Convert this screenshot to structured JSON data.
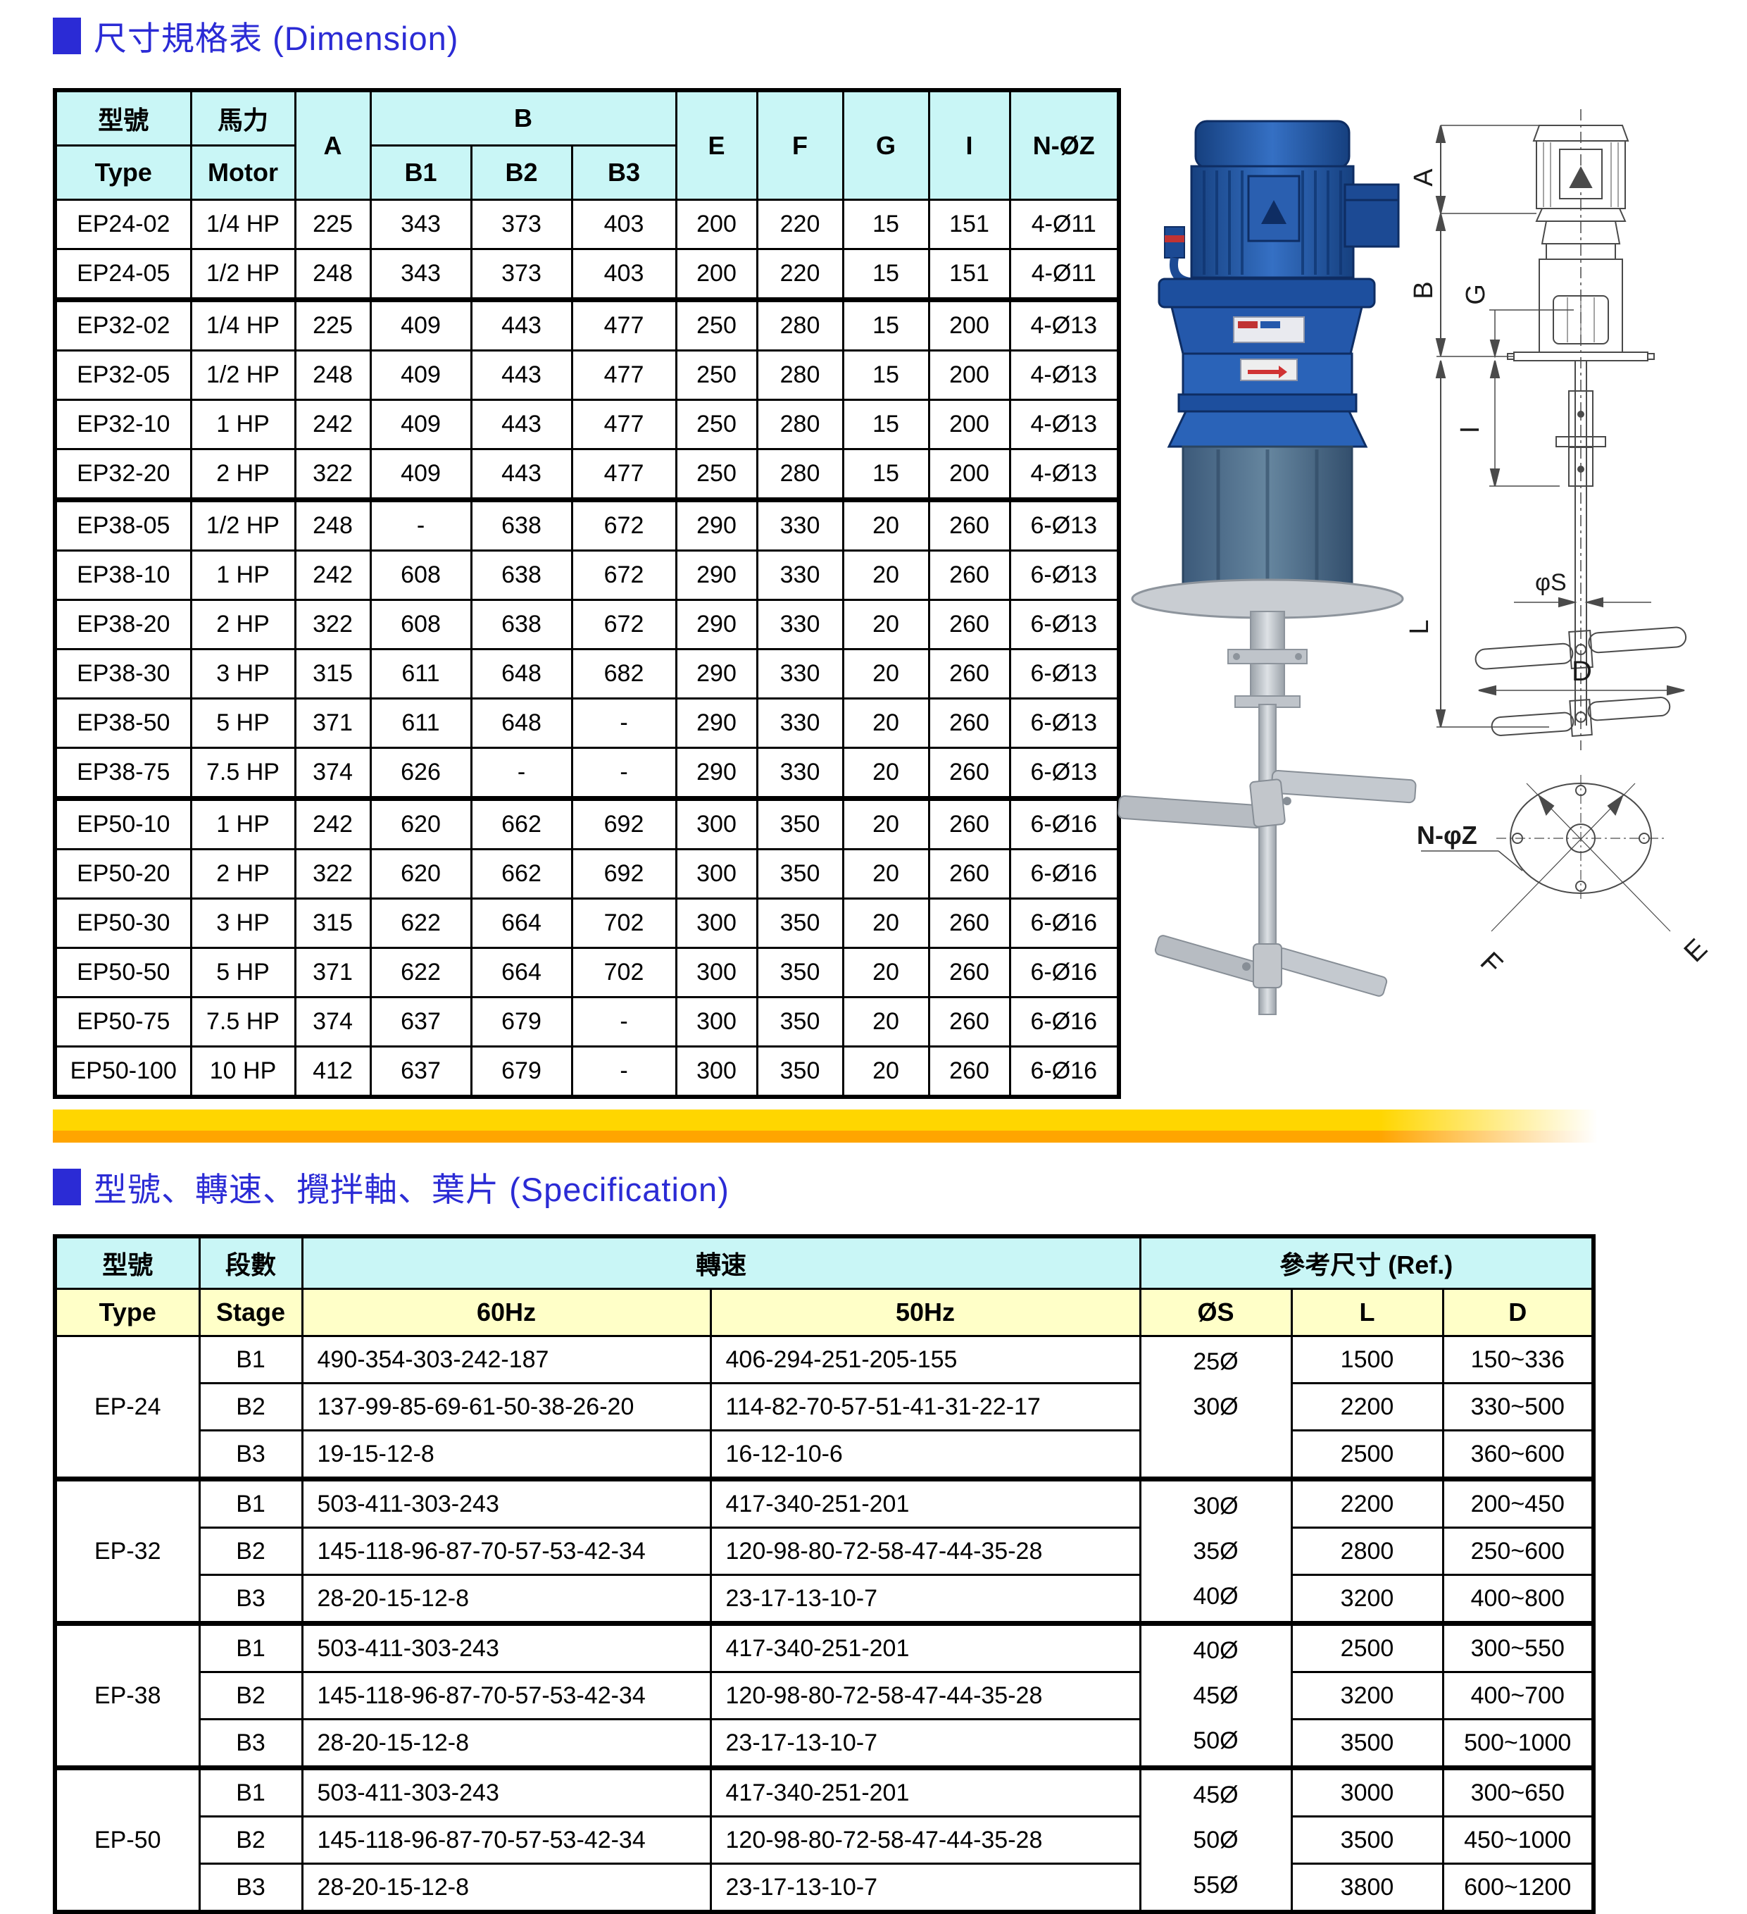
{
  "dimension_section": {
    "title_zh": "尺寸規格表",
    "title_en": "(Dimension)",
    "table": {
      "headers": {
        "type_zh": "型號",
        "type_en": "Type",
        "motor_zh": "馬力",
        "motor_en": "Motor",
        "a": "A",
        "b": "B",
        "b1": "B1",
        "b2": "B2",
        "b3": "B3",
        "e": "E",
        "f": "F",
        "g": "G",
        "i": "I",
        "nz": "N-ØZ"
      },
      "rows": [
        [
          "EP24-02",
          "1/4 HP",
          "225",
          "343",
          "373",
          "403",
          "200",
          "220",
          "15",
          "151",
          "4-Ø11"
        ],
        [
          "EP24-05",
          "1/2 HP",
          "248",
          "343",
          "373",
          "403",
          "200",
          "220",
          "15",
          "151",
          "4-Ø11"
        ],
        [
          "EP32-02",
          "1/4 HP",
          "225",
          "409",
          "443",
          "477",
          "250",
          "280",
          "15",
          "200",
          "4-Ø13"
        ],
        [
          "EP32-05",
          "1/2 HP",
          "248",
          "409",
          "443",
          "477",
          "250",
          "280",
          "15",
          "200",
          "4-Ø13"
        ],
        [
          "EP32-10",
          "1 HP",
          "242",
          "409",
          "443",
          "477",
          "250",
          "280",
          "15",
          "200",
          "4-Ø13"
        ],
        [
          "EP32-20",
          "2 HP",
          "322",
          "409",
          "443",
          "477",
          "250",
          "280",
          "15",
          "200",
          "4-Ø13"
        ],
        [
          "EP38-05",
          "1/2 HP",
          "248",
          "-",
          "638",
          "672",
          "290",
          "330",
          "20",
          "260",
          "6-Ø13"
        ],
        [
          "EP38-10",
          "1 HP",
          "242",
          "608",
          "638",
          "672",
          "290",
          "330",
          "20",
          "260",
          "6-Ø13"
        ],
        [
          "EP38-20",
          "2 HP",
          "322",
          "608",
          "638",
          "672",
          "290",
          "330",
          "20",
          "260",
          "6-Ø13"
        ],
        [
          "EP38-30",
          "3 HP",
          "315",
          "611",
          "648",
          "682",
          "290",
          "330",
          "20",
          "260",
          "6-Ø13"
        ],
        [
          "EP38-50",
          "5 HP",
          "371",
          "611",
          "648",
          "-",
          "290",
          "330",
          "20",
          "260",
          "6-Ø13"
        ],
        [
          "EP38-75",
          "7.5 HP",
          "374",
          "626",
          "-",
          "-",
          "290",
          "330",
          "20",
          "260",
          "6-Ø13"
        ],
        [
          "EP50-10",
          "1 HP",
          "242",
          "620",
          "662",
          "692",
          "300",
          "350",
          "20",
          "260",
          "6-Ø16"
        ],
        [
          "EP50-20",
          "2 HP",
          "322",
          "620",
          "662",
          "692",
          "300",
          "350",
          "20",
          "260",
          "6-Ø16"
        ],
        [
          "EP50-30",
          "3 HP",
          "315",
          "622",
          "664",
          "702",
          "300",
          "350",
          "20",
          "260",
          "6-Ø16"
        ],
        [
          "EP50-50",
          "5 HP",
          "371",
          "622",
          "664",
          "702",
          "300",
          "350",
          "20",
          "260",
          "6-Ø16"
        ],
        [
          "EP50-75",
          "7.5 HP",
          "374",
          "637",
          "679",
          "-",
          "300",
          "350",
          "20",
          "260",
          "6-Ø16"
        ],
        [
          "EP50-100",
          "10 HP",
          "412",
          "637",
          "679",
          "-",
          "300",
          "350",
          "20",
          "260",
          "6-Ø16"
        ]
      ]
    }
  },
  "spec_section": {
    "title_zh": "型號、轉速、攪拌軸、葉片",
    "title_en": "(Specification)",
    "table": {
      "headers": {
        "type_zh": "型號",
        "type_en": "Type",
        "stage_zh": "段數",
        "stage_en": "Stage",
        "speed_zh": "轉速",
        "ref_zh": "參考尺寸 (Ref.)",
        "hz60": "60Hz",
        "hz50": "50Hz",
        "os": "ØS",
        "l": "L",
        "d": "D"
      },
      "groups": [
        {
          "type": "EP-24",
          "os": [
            "25Ø",
            "30Ø",
            ""
          ],
          "rows": [
            [
              "B1",
              "490-354-303-242-187",
              "406-294-251-205-155",
              "1500",
              "150~336"
            ],
            [
              "B2",
              "137-99-85-69-61-50-38-26-20",
              "114-82-70-57-51-41-31-22-17",
              "2200",
              "330~500"
            ],
            [
              "B3",
              "19-15-12-8",
              "16-12-10-6",
              "2500",
              "360~600"
            ]
          ]
        },
        {
          "type": "EP-32",
          "os": [
            "30Ø",
            "35Ø",
            "40Ø"
          ],
          "rows": [
            [
              "B1",
              "503-411-303-243",
              "417-340-251-201",
              "2200",
              "200~450"
            ],
            [
              "B2",
              "145-118-96-87-70-57-53-42-34",
              "120-98-80-72-58-47-44-35-28",
              "2800",
              "250~600"
            ],
            [
              "B3",
              "28-20-15-12-8",
              "23-17-13-10-7",
              "3200",
              "400~800"
            ]
          ]
        },
        {
          "type": "EP-38",
          "os": [
            "40Ø",
            "45Ø",
            "50Ø"
          ],
          "rows": [
            [
              "B1",
              "503-411-303-243",
              "417-340-251-201",
              "2500",
              "300~550"
            ],
            [
              "B2",
              "145-118-96-87-70-57-53-42-34",
              "120-98-80-72-58-47-44-35-28",
              "3200",
              "400~700"
            ],
            [
              "B3",
              "28-20-15-12-8",
              "23-17-13-10-7",
              "3500",
              "500~1000"
            ]
          ]
        },
        {
          "type": "EP-50",
          "os": [
            "45Ø",
            "50Ø",
            "55Ø"
          ],
          "rows": [
            [
              "B1",
              "503-411-303-243",
              "417-340-251-201",
              "3000",
              "300~650"
            ],
            [
              "B2",
              "145-118-96-87-70-57-53-42-34",
              "120-98-80-72-58-47-44-35-28",
              "3500",
              "450~1000"
            ],
            [
              "B3",
              "28-20-15-12-8",
              "23-17-13-10-7",
              "3800",
              "600~1200"
            ]
          ]
        }
      ]
    }
  },
  "diagram": {
    "labels": {
      "a": "A",
      "b": "B",
      "g": "G",
      "i": "I",
      "l": "L",
      "os": "φS",
      "d": "D",
      "nz": "N-φZ",
      "f": "F",
      "e": "E"
    }
  },
  "colors": {
    "accent_blue": "#2B2BD5",
    "header_cyan": "#C9F6F6",
    "header_yellow": "#FFFFC8",
    "bar_yellow": "#FFD600",
    "bar_orange": "#FFA500",
    "motor_blue": "#2a63b8"
  }
}
